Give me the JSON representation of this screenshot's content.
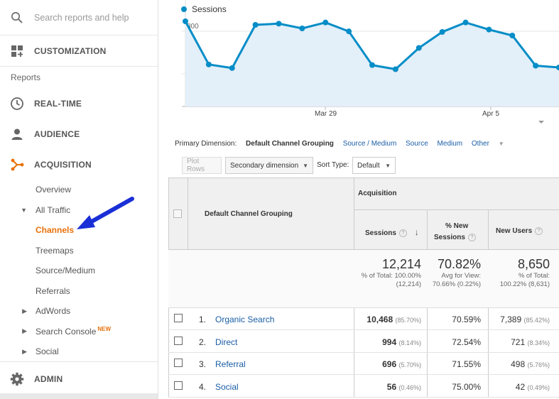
{
  "sidebar": {
    "search_placeholder": "Search reports and help",
    "customization": "CUSTOMIZATION",
    "reports_header": "Reports",
    "realtime": "REAL-TIME",
    "audience": "AUDIENCE",
    "acquisition": "ACQUISITION",
    "overview": "Overview",
    "all_traffic": "All Traffic",
    "channels": "Channels",
    "treemaps": "Treemaps",
    "source_medium": "Source/Medium",
    "referrals": "Referrals",
    "adwords": "AdWords",
    "search_console": "Search Console",
    "new_badge": "NEW",
    "social": "Social",
    "admin": "ADMIN",
    "accent_color": "#e8710a"
  },
  "chart_data": {
    "type": "area",
    "series": [
      {
        "name": "Sessions",
        "values": [
          720,
          355,
          325,
          690,
          700,
          660,
          710,
          635,
          350,
          315,
          495,
          630,
          710,
          650,
          600,
          345,
          330
        ]
      }
    ],
    "y_ticks": [
      "800",
      "400"
    ],
    "ylim": [
      0,
      900
    ],
    "x_ticks": [
      "Mar 29",
      "Apr 5"
    ],
    "color": "#058dc7",
    "fill": "#e3eff9"
  },
  "dimensions": {
    "label": "Primary Dimension:",
    "current": "Default Channel Grouping",
    "options": [
      "Source / Medium",
      "Source",
      "Medium"
    ],
    "other": "Other"
  },
  "controls": {
    "plot_rows": "Plot Rows",
    "secondary": "Secondary dimension",
    "sort_type_label": "Sort Type:",
    "sort_type_value": "Default"
  },
  "table": {
    "group_header": "Default Channel Grouping",
    "acquisition_header": "Acquisition",
    "col_sessions": "Sessions",
    "col_new_sessions_1": "% New",
    "col_new_sessions_2": "Sessions",
    "col_new_users": "New Users",
    "summary": {
      "sessions": "12,214",
      "sessions_sub1": "% of Total: 100.00%",
      "sessions_sub2": "(12,214)",
      "new_sessions": "70.82%",
      "new_sessions_sub1": "Avg for View:",
      "new_sessions_sub2": "70.66% (0.22%)",
      "new_users": "8,650",
      "new_users_sub1": "% of Total:",
      "new_users_sub2": "100.22% (8,631)"
    },
    "rows": [
      {
        "num": "1.",
        "name": "Organic Search",
        "sessions": "10,468",
        "sessions_pct": "(85.70%)",
        "new_sessions": "70.59%",
        "new_users": "7,389",
        "new_users_pct": "(85.42%)"
      },
      {
        "num": "2.",
        "name": "Direct",
        "sessions": "994",
        "sessions_pct": "(8.14%)",
        "new_sessions": "72.54%",
        "new_users": "721",
        "new_users_pct": "(8.34%)"
      },
      {
        "num": "3.",
        "name": "Referral",
        "sessions": "696",
        "sessions_pct": "(5.70%)",
        "new_sessions": "71.55%",
        "new_users": "498",
        "new_users_pct": "(5.76%)"
      },
      {
        "num": "4.",
        "name": "Social",
        "sessions": "56",
        "sessions_pct": "(0.46%)",
        "new_sessions": "75.00%",
        "new_users": "42",
        "new_users_pct": "(0.49%)"
      }
    ]
  }
}
